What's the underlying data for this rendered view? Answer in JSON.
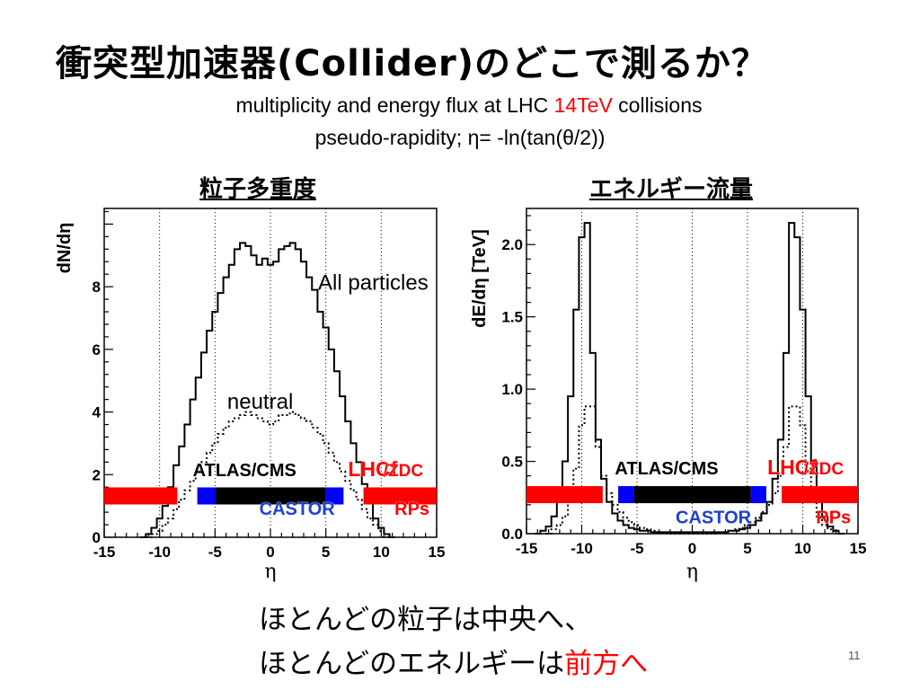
{
  "slide": {
    "title": "衝突型加速器(Collider)のどこで測るか？",
    "subtitle_part1": "multiplicity and energy flux at LHC ",
    "subtitle_highlight": "14TeV",
    "subtitle_part2": " collisions",
    "subtitle_line2": "pseudo-rapidity; η= -ln(tan(θ/2))",
    "bottom_line1": "ほとんどの粒子は中央へ、",
    "bottom_line2_part1": "ほとんどのエネルギーは",
    "bottom_line2_highlight": "前方へ",
    "page_number": "11",
    "colors": {
      "highlight": "#ff0000",
      "detector_red": "#ff0000",
      "detector_blue": "#0000ff",
      "detector_black": "#000000"
    }
  },
  "chart_data": [
    {
      "type": "line",
      "heading": "粒子多重度",
      "xlabel": "η",
      "ylabel": "dN/dη",
      "xlim": [
        -15,
        15
      ],
      "ylim": [
        0,
        10.5
      ],
      "x_ticks": [
        -15,
        -10,
        -5,
        0,
        5,
        10,
        15
      ],
      "x_tick_labels": [
        "-15",
        "-10",
        "-5",
        "0",
        "5",
        "10",
        "15"
      ],
      "y_ticks": [
        0,
        2,
        4,
        6,
        8
      ],
      "y_tick_labels": [
        "0",
        "2",
        "4",
        "6",
        "8"
      ],
      "grid_x": [
        -10,
        -5,
        0,
        5,
        10
      ],
      "series": [
        {
          "name": "All particles",
          "style": "solid",
          "x": [
            -11.5,
            -11,
            -10.5,
            -10,
            -9.5,
            -9,
            -8.5,
            -8,
            -7.5,
            -7,
            -6.5,
            -6,
            -5.5,
            -5,
            -4.5,
            -4,
            -3.5,
            -3,
            -2.5,
            -2,
            -1.5,
            -1,
            -0.5,
            0,
            0.5,
            1,
            1.5,
            2,
            2.5,
            3,
            3.5,
            4,
            4.5,
            5,
            5.5,
            6,
            6.5,
            7,
            7.5,
            8,
            8.5,
            9,
            9.5,
            10,
            10.5,
            11
          ],
          "values": [
            0,
            0.1,
            0.3,
            0.6,
            1.0,
            1.6,
            2.3,
            2.9,
            3.6,
            4.4,
            5.1,
            5.9,
            6.6,
            7.2,
            7.8,
            8.3,
            8.7,
            9.2,
            9.4,
            9.3,
            9.0,
            8.7,
            8.9,
            8.7,
            8.8,
            9.2,
            9.3,
            9.4,
            9.2,
            8.8,
            8.3,
            7.9,
            7.2,
            6.7,
            6.0,
            5.3,
            4.5,
            3.7,
            3.0,
            2.4,
            1.7,
            1.1,
            0.6,
            0.3,
            0.1,
            0
          ]
        },
        {
          "name": "neutral",
          "style": "dotted",
          "x": [
            -11,
            -10.5,
            -10,
            -9.5,
            -9,
            -8.5,
            -8,
            -7.5,
            -7,
            -6.5,
            -6,
            -5.5,
            -5,
            -4.5,
            -4,
            -3.5,
            -3,
            -2.5,
            -2,
            -1.5,
            -1,
            -0.5,
            0,
            0.5,
            1,
            1.5,
            2,
            2.5,
            3,
            3.5,
            4,
            4.5,
            5,
            5.5,
            6,
            6.5,
            7,
            7.5,
            8,
            8.5,
            9,
            9.5,
            10,
            10.5
          ],
          "values": [
            0,
            0.1,
            0.2,
            0.4,
            0.6,
            0.9,
            1.2,
            1.5,
            1.8,
            2.1,
            2.4,
            2.7,
            3.0,
            3.3,
            3.5,
            3.7,
            3.8,
            3.9,
            4.0,
            3.9,
            3.8,
            3.7,
            3.6,
            3.7,
            3.9,
            3.9,
            4.0,
            3.9,
            3.8,
            3.7,
            3.5,
            3.3,
            3.0,
            2.7,
            2.4,
            2.1,
            1.8,
            1.5,
            1.2,
            0.9,
            0.6,
            0.4,
            0.2,
            0
          ]
        }
      ],
      "annotations": [
        {
          "text": "All particles",
          "x": 4.3,
          "y": 7.9
        },
        {
          "text": "neutral",
          "x": -3.9,
          "y": 4.1
        }
      ],
      "detectors": {
        "red_left": [
          -15,
          -8.4
        ],
        "blue_left": [
          -6.6,
          -5.0
        ],
        "black": [
          -5.0,
          5.0
        ],
        "blue_right": [
          5.0,
          6.6
        ],
        "red_right": [
          8.4,
          15
        ],
        "bar_y": 1.32,
        "labels": {
          "atlas_cms": {
            "text": "ATLAS/CMS",
            "x": -7.0,
            "y": 1.95
          },
          "lhcf": {
            "text": "LHCf",
            "x": 7.0,
            "y": 1.95
          },
          "zdc": {
            "text": "/ZDC",
            "x": 10.2,
            "y": 1.95
          },
          "castor": {
            "text": "CASTOR",
            "x": -1.0,
            "y": 0.72
          },
          "rps": {
            "text": "RPs",
            "x": 11.2,
            "y": 0.72
          }
        }
      }
    },
    {
      "type": "line",
      "heading": "エネルギー流量",
      "xlabel": "η",
      "ylabel": "dE/dη [TeV]",
      "xlim": [
        -15,
        15
      ],
      "ylim": [
        0,
        2.25
      ],
      "x_ticks": [
        -15,
        -10,
        -5,
        0,
        5,
        10,
        15
      ],
      "x_tick_labels": [
        "-15",
        "-10",
        "-5",
        "0",
        "5",
        "10",
        "15"
      ],
      "y_ticks": [
        0,
        0.5,
        1.0,
        1.5,
        2.0
      ],
      "y_tick_labels": [
        "0.0",
        "0.5",
        "1.0",
        "1.5",
        "2.0"
      ],
      "grid_x": [
        -10,
        -5,
        0,
        5,
        10
      ],
      "series": [
        {
          "name": "All particles",
          "style": "solid",
          "x": [
            -14,
            -13.5,
            -13,
            -12.5,
            -12,
            -11.5,
            -11,
            -10.5,
            -10,
            -9.5,
            -9,
            -8.5,
            -8,
            -7.5,
            -7,
            -6.5,
            -6,
            -5.5,
            -5,
            -4.5,
            -4,
            -3.5,
            -3,
            -2.5,
            -2,
            -1.5,
            -1,
            -0.5,
            0,
            0.5,
            1,
            1.5,
            2,
            2.5,
            3,
            3.5,
            4,
            4.5,
            5,
            5.5,
            6,
            6.5,
            7,
            7.5,
            8,
            8.5,
            9,
            9.5,
            10,
            10.5,
            11,
            11.5,
            12,
            12.5,
            13,
            13.5
          ],
          "values": [
            0.0,
            0.02,
            0.05,
            0.12,
            0.25,
            0.5,
            0.95,
            1.55,
            2.05,
            2.15,
            1.25,
            0.65,
            0.38,
            0.22,
            0.14,
            0.09,
            0.06,
            0.04,
            0.03,
            0.02,
            0.02,
            0.01,
            0.01,
            0.01,
            0.01,
            0.01,
            0.01,
            0.01,
            0.01,
            0.01,
            0.01,
            0.01,
            0.01,
            0.01,
            0.01,
            0.02,
            0.02,
            0.03,
            0.04,
            0.06,
            0.09,
            0.14,
            0.22,
            0.38,
            0.65,
            1.25,
            2.15,
            2.05,
            1.55,
            0.95,
            0.5,
            0.25,
            0.12,
            0.05,
            0.02,
            0.0
          ]
        },
        {
          "name": "neutral",
          "style": "dotted",
          "x": [
            -13,
            -12.5,
            -12,
            -11.5,
            -11,
            -10.5,
            -10,
            -9.5,
            -9,
            -8.5,
            -8,
            -7.5,
            -7,
            -6.5,
            -6,
            -5.5,
            -5,
            -4.5,
            -4,
            -3.5,
            -3,
            -2,
            0,
            2,
            3,
            3.5,
            4,
            4.5,
            5,
            5.5,
            6,
            6.5,
            7,
            7.5,
            8,
            8.5,
            9,
            9.5,
            10,
            10.5,
            11,
            11.5,
            12,
            12.5
          ],
          "values": [
            0.0,
            0.03,
            0.06,
            0.12,
            0.25,
            0.45,
            0.75,
            0.88,
            0.88,
            0.6,
            0.4,
            0.28,
            0.2,
            0.15,
            0.11,
            0.08,
            0.06,
            0.04,
            0.03,
            0.02,
            0.01,
            0.0,
            0.0,
            0.0,
            0.01,
            0.02,
            0.03,
            0.04,
            0.06,
            0.08,
            0.11,
            0.15,
            0.2,
            0.28,
            0.4,
            0.6,
            0.88,
            0.88,
            0.75,
            0.45,
            0.25,
            0.12,
            0.06,
            0.03
          ]
        }
      ],
      "detectors": {
        "red_left": [
          -15,
          -8.1
        ],
        "blue_left": [
          -6.7,
          -5.3
        ],
        "black": [
          -5.3,
          5.3
        ],
        "blue_right": [
          5.3,
          6.7
        ],
        "red_right": [
          8.1,
          15
        ],
        "bar_y": 0.27,
        "labels": {
          "atlas_cms": {
            "text": "ATLAS/CMS",
            "x": -7.0,
            "y": 0.41
          },
          "lhcf": {
            "text": "LHCf",
            "x": 6.8,
            "y": 0.41
          },
          "zdc": {
            "text": "/ZDC",
            "x": 10.1,
            "y": 0.41
          },
          "castor": {
            "text": "CASTOR",
            "x": -1.5,
            "y": 0.07
          },
          "rps": {
            "text": "RPs",
            "x": 11.2,
            "y": 0.07
          }
        }
      }
    }
  ]
}
